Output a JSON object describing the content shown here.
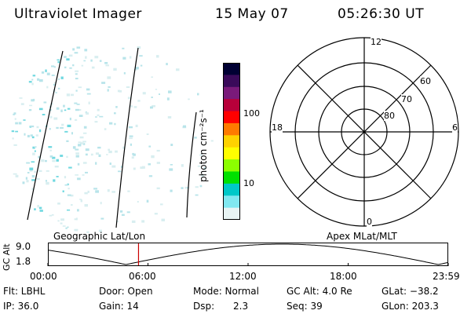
{
  "header": {
    "instrument": "Ultraviolet Imager",
    "date": "15 May 07",
    "time": "05:26:30 UT"
  },
  "colorbar": {
    "label": "photon cm⁻²s⁻¹",
    "ticks": [
      "100",
      "10"
    ],
    "colors": [
      "#000033",
      "#3a0a5a",
      "#7a1a7a",
      "#b8003a",
      "#ff0000",
      "#ff7a00",
      "#ffd200",
      "#ffff00",
      "#8cff00",
      "#00e000",
      "#00c8c8",
      "#80e8f0",
      "#e8f4f4"
    ]
  },
  "polar": {
    "mlt_labels": {
      "top": "12",
      "left": "18",
      "right": "6",
      "bottom": "0"
    },
    "lat_labels": [
      "60",
      "70",
      "80"
    ]
  },
  "timeline": {
    "left_title": "Geographic Lat/Lon",
    "right_title": "Apex MLat/MLT",
    "y_label": "GC Alt",
    "y_ticks": [
      "9.0",
      "1.8"
    ],
    "x_ticks": [
      "00:00",
      "06:00",
      "12:00",
      "18:00",
      "23:59"
    ],
    "marker_time": "05:26",
    "marker_color": "#cc0000"
  },
  "info": {
    "row1": {
      "flt": "Flt: LBHL",
      "door": "Door: Open",
      "mode": "Mode: Normal",
      "gcalt": "GC Alt: 4.0 Re",
      "glat": "GLat: −38.2"
    },
    "row2": {
      "ip": "IP: 36.0",
      "gain": "Gain: 14",
      "dsp_label": "Dsp:",
      "dsp_value": "2.3",
      "seq": "Seq: 39",
      "glon": "GLon: 203.3"
    }
  }
}
